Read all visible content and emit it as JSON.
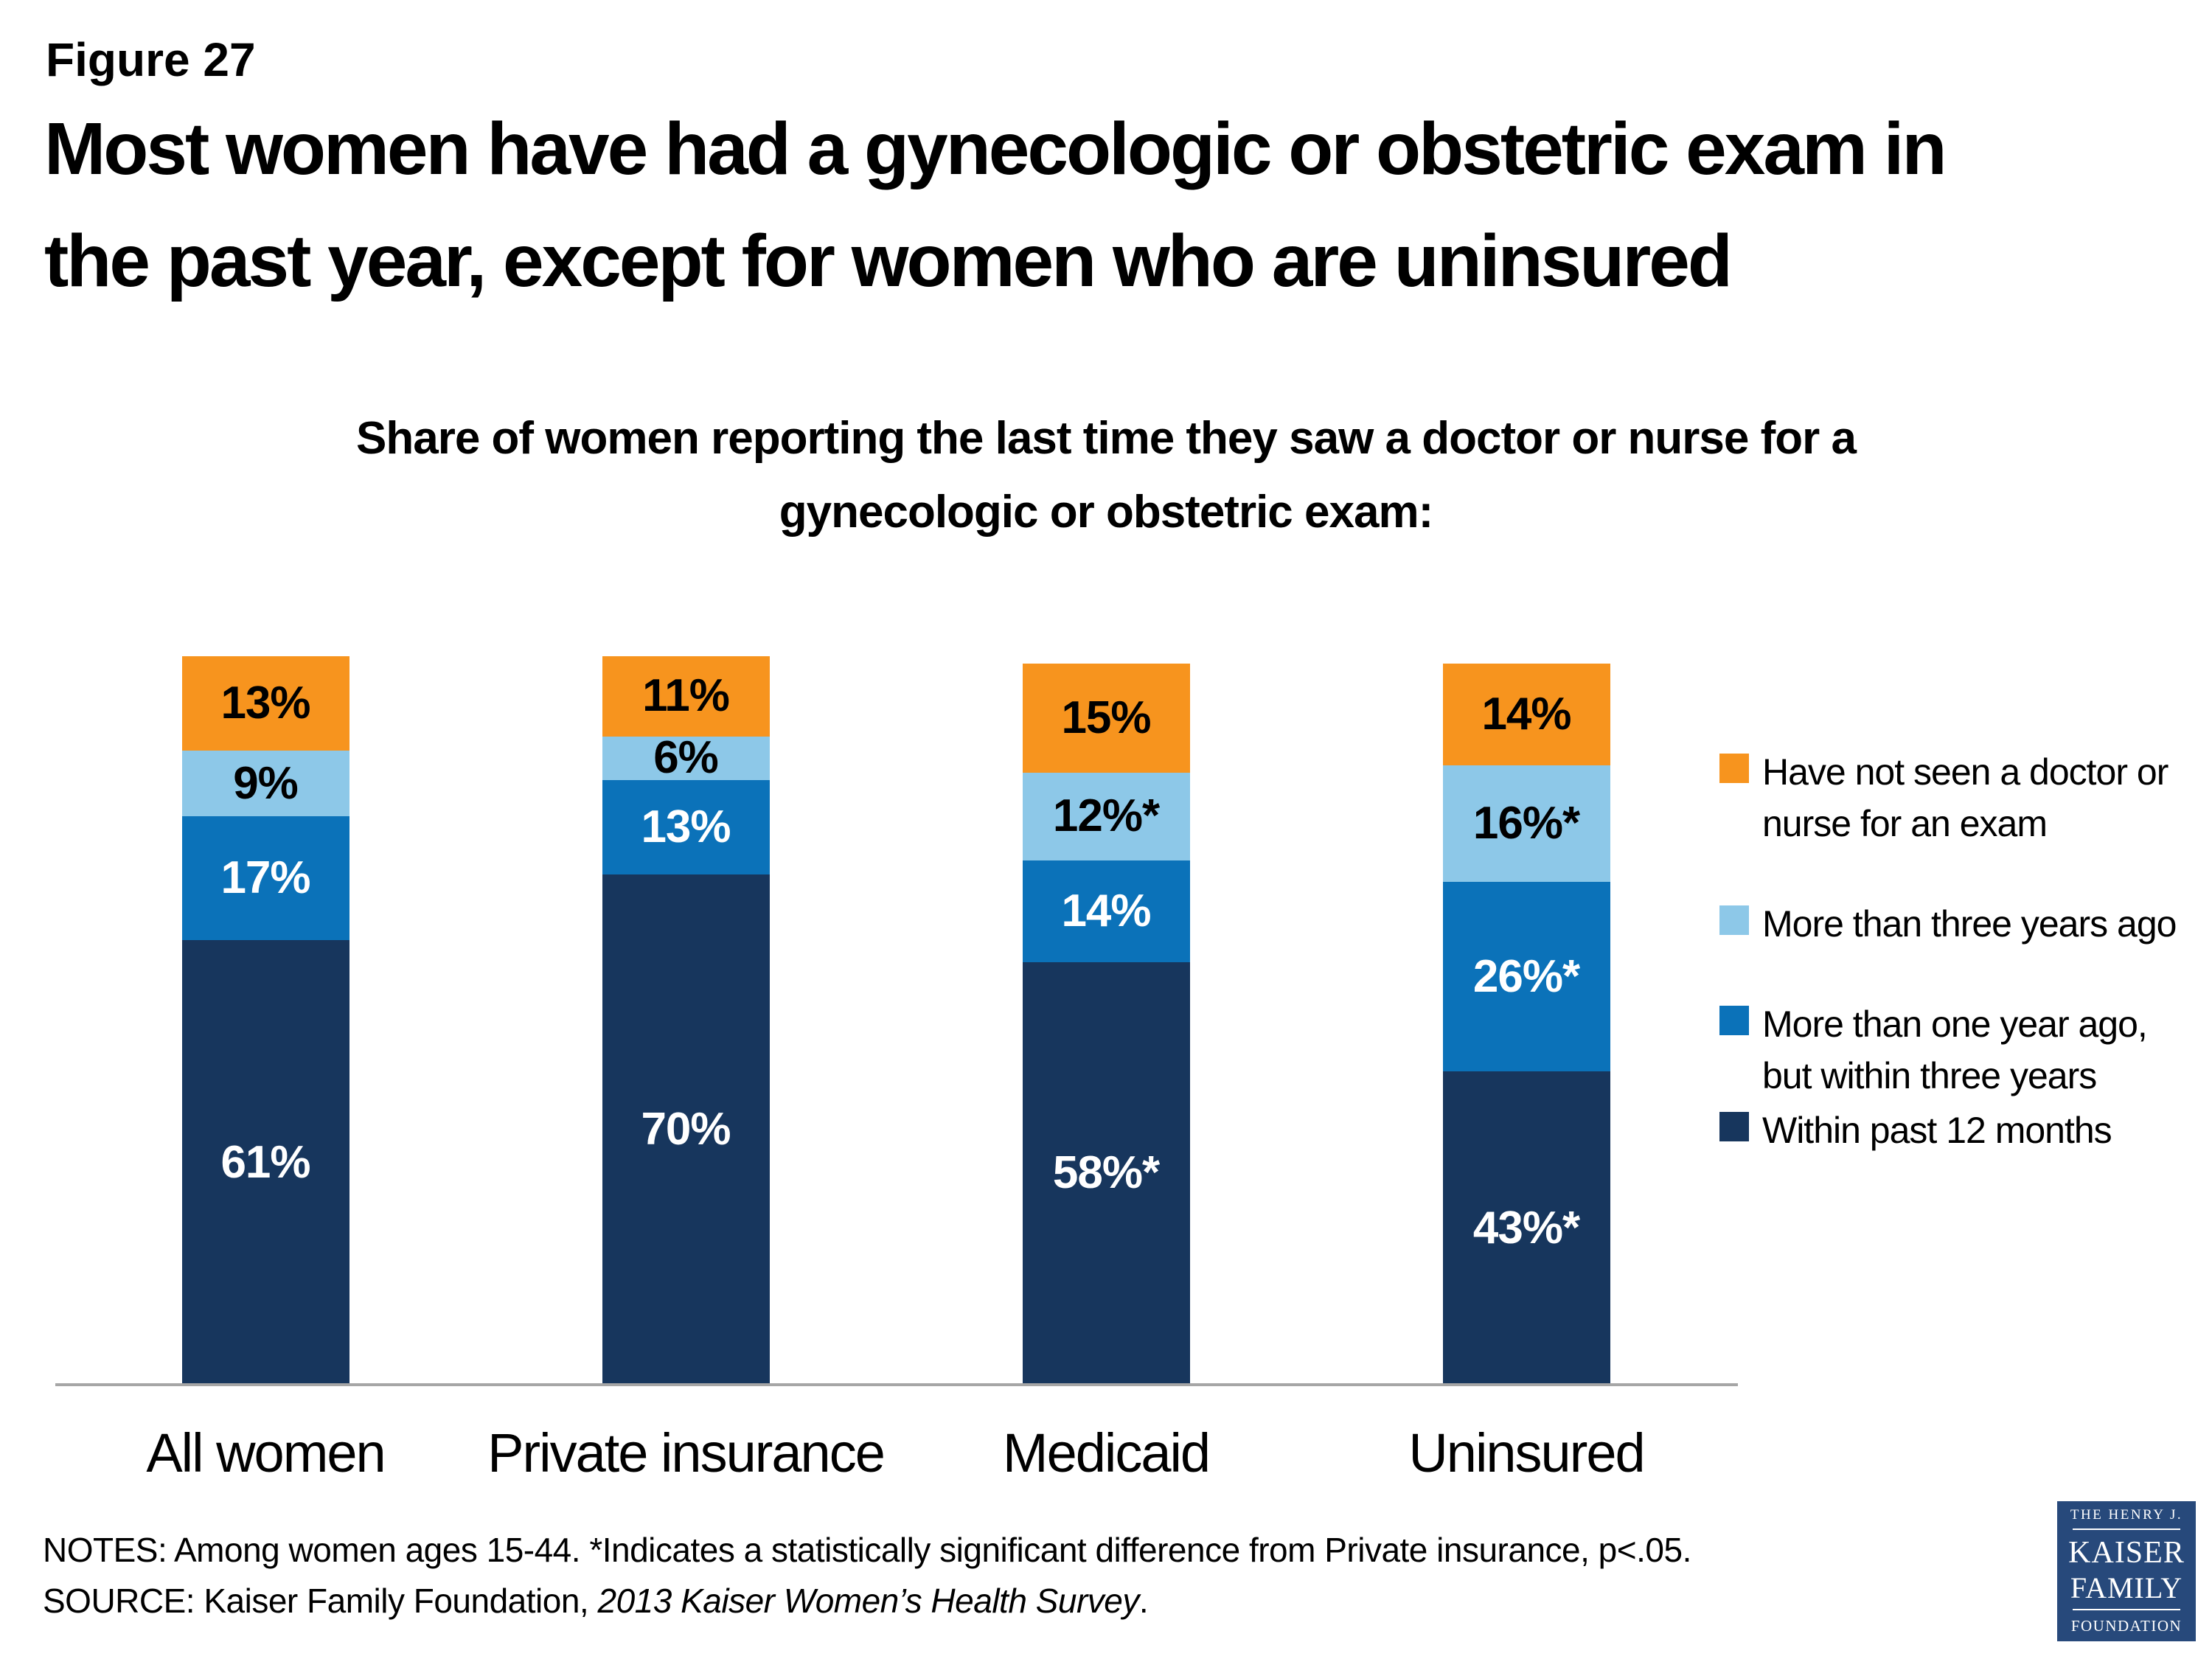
{
  "header": {
    "figure_label": "Figure 27",
    "title_line1": "Most women have had a gynecologic or obstetric exam in",
    "title_line2": "the past year, except for women who are uninsured"
  },
  "subtitle": {
    "line1": "Share of women reporting the last time they saw a doctor or nurse for a",
    "line2": "gynecologic or obstetric exam:"
  },
  "chart_data": {
    "type": "bar",
    "stacked": true,
    "ylim": [
      0,
      100
    ],
    "grid": false,
    "legend_position": "right",
    "title": "Share of women reporting the last time they saw a doctor or nurse for a gynecologic or obstetric exam:",
    "xlabel": "",
    "ylabel": "",
    "categories": [
      "All women",
      "Private insurance",
      "Medicaid",
      "Uninsured"
    ],
    "series": [
      {
        "name": "Within past 12 months",
        "color": "#17365d",
        "label_color": "#ffffff",
        "values": [
          61,
          70,
          58,
          43
        ],
        "labels": [
          "61%",
          "70%",
          "58%*",
          "43%*"
        ]
      },
      {
        "name": "More than one year ago, but within three years",
        "color": "#0b72b9",
        "label_color": "#ffffff",
        "values": [
          17,
          13,
          14,
          26
        ],
        "labels": [
          "17%",
          "13%",
          "14%",
          "26%*"
        ]
      },
      {
        "name": "More than three years ago",
        "color": "#8dc8e8",
        "label_color": "#000000",
        "values": [
          9,
          6,
          12,
          16
        ],
        "labels": [
          "9%",
          "6%",
          "12%*",
          "16%*"
        ]
      },
      {
        "name": "Have not seen a doctor or nurse for an exam",
        "color": "#f7941e",
        "label_color": "#000000",
        "values": [
          13,
          11,
          15,
          14
        ],
        "labels": [
          "13%",
          "11%",
          "15%",
          "14%"
        ]
      }
    ]
  },
  "legend": {
    "items": [
      {
        "label": "Have not seen a doctor or nurse for an exam",
        "color": "#f7941e"
      },
      {
        "label": "More than three years ago",
        "color": "#8dc8e8"
      },
      {
        "label": "More than one year ago, but within three years",
        "color": "#0b72b9"
      },
      {
        "label": "Within past 12 months",
        "color": "#17365d"
      }
    ]
  },
  "notes": {
    "line1": "NOTES: Among women ages 15-44. *Indicates a statistically significant difference from Private insurance, p<.05.",
    "source_prefix": "SOURCE: Kaiser Family Foundation, ",
    "source_italic": "2013 Kaiser Women’s Health Survey",
    "source_suffix": "."
  },
  "logo": {
    "line1": "THE HENRY J.",
    "line2": "KAISER",
    "line3": "FAMILY",
    "line4": "FOUNDATION"
  },
  "colors": {
    "navy": "#17365d",
    "mid_blue": "#0b72b9",
    "light_blue": "#8dc8e8",
    "orange": "#f7941e",
    "baseline_gray": "#a6a6a6",
    "logo_navy": "#27497b"
  }
}
